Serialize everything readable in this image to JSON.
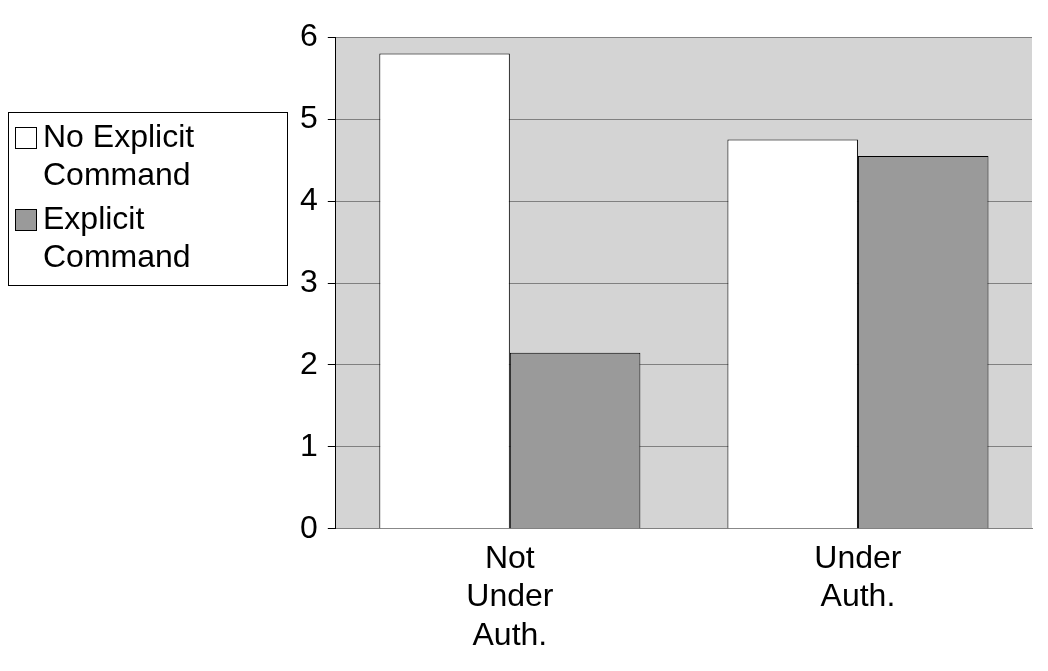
{
  "chart_data": {
    "type": "bar",
    "categories": [
      "Not Under Auth.",
      "Under Auth."
    ],
    "series": [
      {
        "name": "No Explicit Command",
        "color": "#ffffff",
        "values": [
          5.8,
          4.75
        ]
      },
      {
        "name": "Explicit Command",
        "color": "#9a9a9a",
        "values": [
          2.15,
          4.55
        ]
      }
    ],
    "ylim": [
      0,
      6
    ],
    "yticks": [
      0,
      1,
      2,
      3,
      4,
      5,
      6
    ],
    "grid": "y",
    "legend": "left"
  }
}
